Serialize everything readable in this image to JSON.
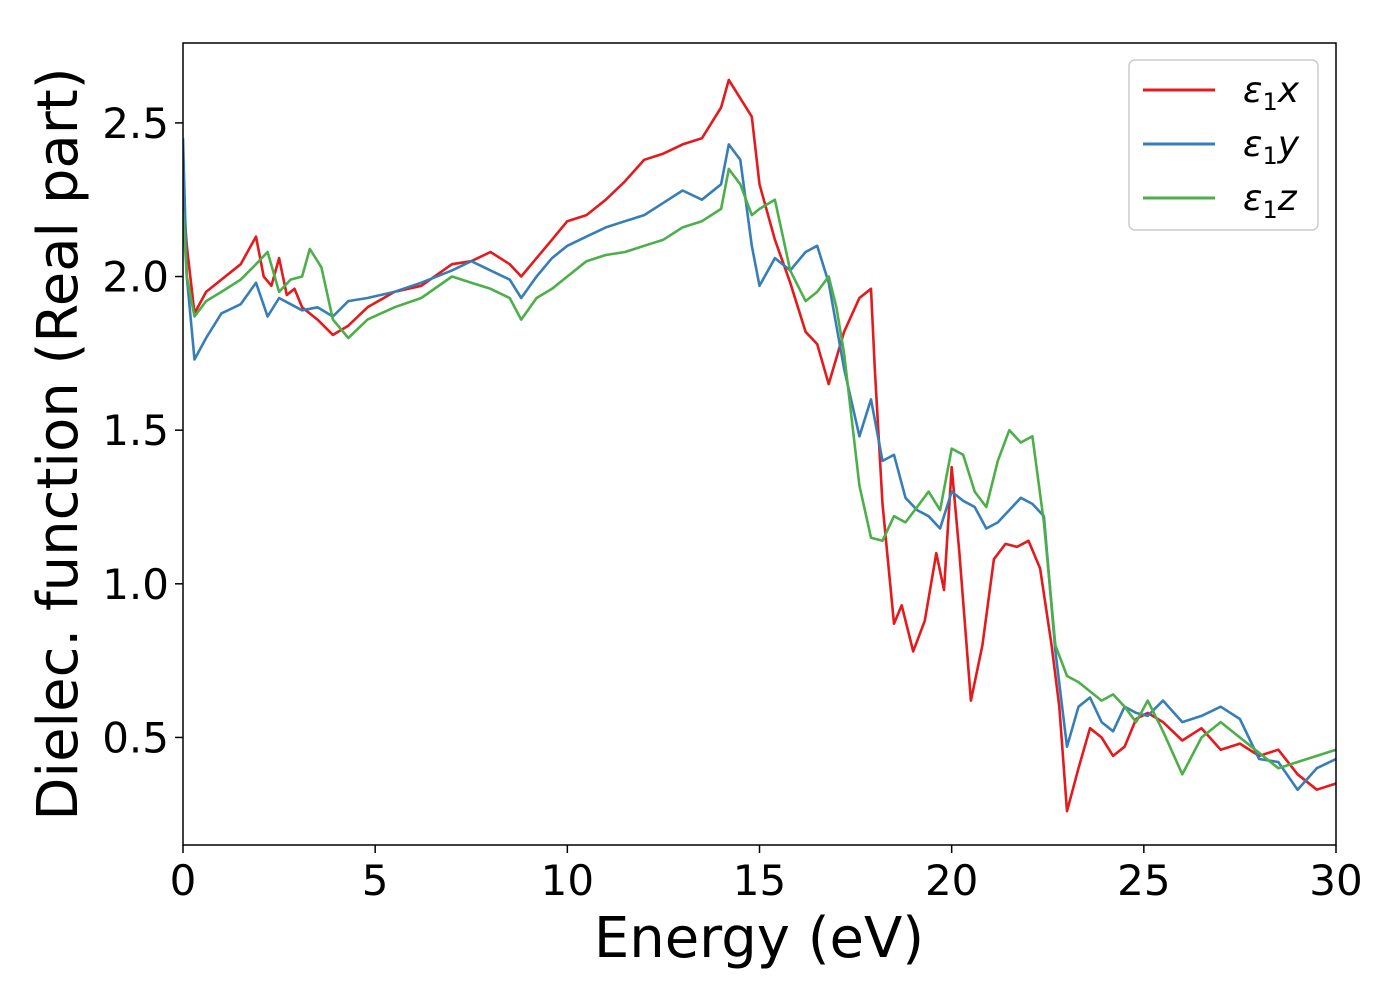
{
  "chart_data": {
    "type": "line",
    "xlabel": "Energy (eV)",
    "ylabel": "Dielec. function (Real part)",
    "xlim": [
      0,
      30
    ],
    "ylim": [
      0.15,
      2.76
    ],
    "xticks": [
      0,
      5,
      10,
      15,
      20,
      25,
      30
    ],
    "yticks": [
      0.5,
      1.0,
      1.5,
      2.0,
      2.5
    ],
    "xtick_labels": [
      "0",
      "5",
      "10",
      "15",
      "20",
      "25",
      "30"
    ],
    "ytick_labels": [
      "0.5",
      "1.0",
      "1.5",
      "2.0",
      "2.5"
    ],
    "grid": false,
    "legend_position": "top-right",
    "series": [
      {
        "name": "ε₁x",
        "legend_base": "ε",
        "legend_sub": "1",
        "legend_var": "x",
        "color": "#e41a1c",
        "x": [
          0,
          0.1,
          0.3,
          0.6,
          1.0,
          1.5,
          1.9,
          2.1,
          2.3,
          2.5,
          2.7,
          2.9,
          3.1,
          3.5,
          3.9,
          4.3,
          4.8,
          5.5,
          6.2,
          7.0,
          7.5,
          8.0,
          8.5,
          8.8,
          9.2,
          9.6,
          10.0,
          10.5,
          11.0,
          11.5,
          12.0,
          12.5,
          13.0,
          13.5,
          14.0,
          14.2,
          14.5,
          14.8,
          15.0,
          15.4,
          15.8,
          16.2,
          16.5,
          16.8,
          17.2,
          17.6,
          17.9,
          18.0,
          18.2,
          18.5,
          18.7,
          19.0,
          19.3,
          19.6,
          19.8,
          20.0,
          20.2,
          20.5,
          20.8,
          21.1,
          21.4,
          21.7,
          22.0,
          22.3,
          22.6,
          22.8,
          23.0,
          23.3,
          23.6,
          23.9,
          24.2,
          24.5,
          24.8,
          25.1,
          25.5,
          26.0,
          26.5,
          27.0,
          27.5,
          28.0,
          28.5,
          29.0,
          29.5,
          30.0
        ],
        "y": [
          2.27,
          2.1,
          1.88,
          1.95,
          1.99,
          2.04,
          2.13,
          2.0,
          1.97,
          2.06,
          1.94,
          1.96,
          1.9,
          1.86,
          1.81,
          1.84,
          1.9,
          1.95,
          1.97,
          2.04,
          2.05,
          2.08,
          2.04,
          2.0,
          2.06,
          2.12,
          2.18,
          2.2,
          2.25,
          2.31,
          2.38,
          2.4,
          2.43,
          2.45,
          2.55,
          2.64,
          2.58,
          2.52,
          2.3,
          2.12,
          1.98,
          1.82,
          1.78,
          1.65,
          1.82,
          1.93,
          1.96,
          1.7,
          1.26,
          0.87,
          0.93,
          0.78,
          0.88,
          1.1,
          0.98,
          1.38,
          1.1,
          0.62,
          0.8,
          1.08,
          1.13,
          1.12,
          1.14,
          1.05,
          0.8,
          0.6,
          0.26,
          0.4,
          0.53,
          0.5,
          0.44,
          0.47,
          0.56,
          0.58,
          0.55,
          0.49,
          0.53,
          0.46,
          0.48,
          0.44,
          0.46,
          0.38,
          0.33,
          0.35
        ]
      },
      {
        "name": "ε₁y",
        "legend_base": "ε",
        "legend_sub": "1",
        "legend_var": "y",
        "color": "#377eb8",
        "x": [
          0,
          0.1,
          0.3,
          0.6,
          1.0,
          1.5,
          1.9,
          2.2,
          2.5,
          2.8,
          3.1,
          3.5,
          3.9,
          4.3,
          4.8,
          5.5,
          6.2,
          7.0,
          7.5,
          8.0,
          8.5,
          8.8,
          9.2,
          9.6,
          10.0,
          10.5,
          11.0,
          11.5,
          12.0,
          12.5,
          13.0,
          13.5,
          14.0,
          14.2,
          14.5,
          14.8,
          15.0,
          15.4,
          15.8,
          16.2,
          16.5,
          16.8,
          17.2,
          17.6,
          17.9,
          18.2,
          18.5,
          18.8,
          19.1,
          19.4,
          19.7,
          20.0,
          20.3,
          20.6,
          20.9,
          21.2,
          21.5,
          21.8,
          22.1,
          22.4,
          22.7,
          23.0,
          23.3,
          23.6,
          23.9,
          24.2,
          24.5,
          24.8,
          25.1,
          25.5,
          26.0,
          26.5,
          27.0,
          27.5,
          28.0,
          28.5,
          29.0,
          29.5,
          30.0
        ],
        "y": [
          2.45,
          2.0,
          1.73,
          1.8,
          1.88,
          1.91,
          1.98,
          1.87,
          1.93,
          1.91,
          1.89,
          1.9,
          1.87,
          1.92,
          1.93,
          1.95,
          1.98,
          2.02,
          2.05,
          2.02,
          1.99,
          1.93,
          2.0,
          2.06,
          2.1,
          2.13,
          2.16,
          2.18,
          2.2,
          2.24,
          2.28,
          2.25,
          2.3,
          2.43,
          2.38,
          2.1,
          1.97,
          2.06,
          2.02,
          2.08,
          2.1,
          1.98,
          1.7,
          1.48,
          1.6,
          1.4,
          1.42,
          1.28,
          1.24,
          1.22,
          1.18,
          1.3,
          1.27,
          1.25,
          1.18,
          1.2,
          1.24,
          1.28,
          1.26,
          1.22,
          0.78,
          0.47,
          0.6,
          0.63,
          0.55,
          0.52,
          0.6,
          0.58,
          0.57,
          0.62,
          0.55,
          0.57,
          0.6,
          0.56,
          0.43,
          0.42,
          0.33,
          0.4,
          0.43
        ]
      },
      {
        "name": "ε₁z",
        "legend_base": "ε",
        "legend_sub": "1",
        "legend_var": "z",
        "color": "#4daf4a",
        "x": [
          0,
          0.1,
          0.3,
          0.6,
          1.0,
          1.5,
          1.9,
          2.2,
          2.5,
          2.8,
          3.1,
          3.3,
          3.6,
          3.9,
          4.3,
          4.8,
          5.5,
          6.2,
          7.0,
          7.5,
          8.0,
          8.5,
          8.8,
          9.2,
          9.6,
          10.0,
          10.5,
          11.0,
          11.5,
          12.0,
          12.5,
          13.0,
          13.5,
          14.0,
          14.2,
          14.5,
          14.8,
          15.0,
          15.4,
          15.8,
          16.2,
          16.5,
          16.8,
          17.0,
          17.2,
          17.6,
          17.9,
          18.2,
          18.5,
          18.8,
          19.1,
          19.4,
          19.7,
          20.0,
          20.3,
          20.6,
          20.9,
          21.2,
          21.5,
          21.8,
          22.1,
          22.4,
          22.7,
          23.0,
          23.3,
          23.6,
          23.9,
          24.2,
          24.5,
          24.8,
          25.1,
          25.5,
          26.0,
          26.5,
          27.0,
          27.5,
          28.0,
          28.5,
          29.0,
          29.5,
          30.0
        ],
        "y": [
          2.21,
          2.0,
          1.87,
          1.92,
          1.95,
          1.99,
          2.04,
          2.08,
          1.95,
          1.99,
          2.0,
          2.09,
          2.03,
          1.86,
          1.8,
          1.86,
          1.9,
          1.93,
          2.0,
          1.98,
          1.96,
          1.93,
          1.86,
          1.93,
          1.96,
          2.0,
          2.05,
          2.07,
          2.08,
          2.1,
          2.12,
          2.16,
          2.18,
          2.22,
          2.35,
          2.3,
          2.2,
          2.22,
          2.25,
          2.02,
          1.92,
          1.95,
          2.0,
          1.9,
          1.75,
          1.32,
          1.15,
          1.14,
          1.22,
          1.2,
          1.25,
          1.3,
          1.24,
          1.44,
          1.42,
          1.3,
          1.25,
          1.4,
          1.5,
          1.46,
          1.48,
          1.2,
          0.8,
          0.7,
          0.68,
          0.65,
          0.62,
          0.64,
          0.6,
          0.55,
          0.62,
          0.52,
          0.38,
          0.5,
          0.55,
          0.5,
          0.45,
          0.4,
          0.42,
          0.44,
          0.46
        ]
      }
    ]
  }
}
